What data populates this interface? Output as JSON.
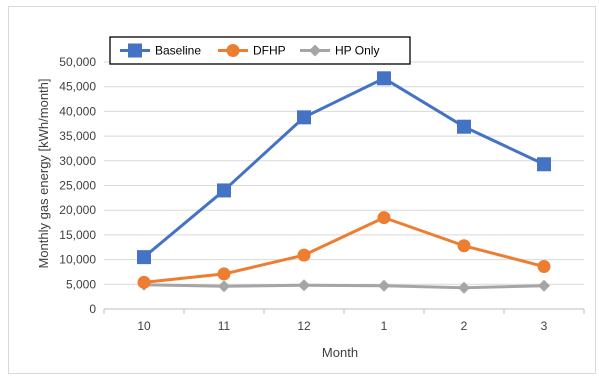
{
  "chart_data": {
    "type": "line",
    "title": "",
    "xlabel": "Month",
    "ylabel": "Monthly gas energy [kWh/month]",
    "categories": [
      "10",
      "11",
      "12",
      "1",
      "2",
      "3"
    ],
    "ylim": [
      0,
      50000
    ],
    "yticks": [
      0,
      5000,
      10000,
      15000,
      20000,
      25000,
      30000,
      35000,
      40000,
      45000,
      50000
    ],
    "ytick_labels": [
      "0",
      "5,000",
      "10,000",
      "15,000",
      "20,000",
      "25,000",
      "30,000",
      "35,000",
      "40,000",
      "45,000",
      "50,000"
    ],
    "grid": true,
    "legend_position": "top-left",
    "series": [
      {
        "name": "Baseline",
        "values": [
          10500,
          24000,
          38800,
          46700,
          36900,
          29300
        ],
        "color": "#4472c4",
        "marker": "square"
      },
      {
        "name": "DFHP",
        "values": [
          5400,
          7100,
          10900,
          18500,
          12800,
          8600
        ],
        "color": "#ed7d31",
        "marker": "circle"
      },
      {
        "name": "HP Only",
        "values": [
          4900,
          4600,
          4800,
          4700,
          4300,
          4700
        ],
        "color": "#a5a5a5",
        "marker": "diamond"
      }
    ]
  }
}
